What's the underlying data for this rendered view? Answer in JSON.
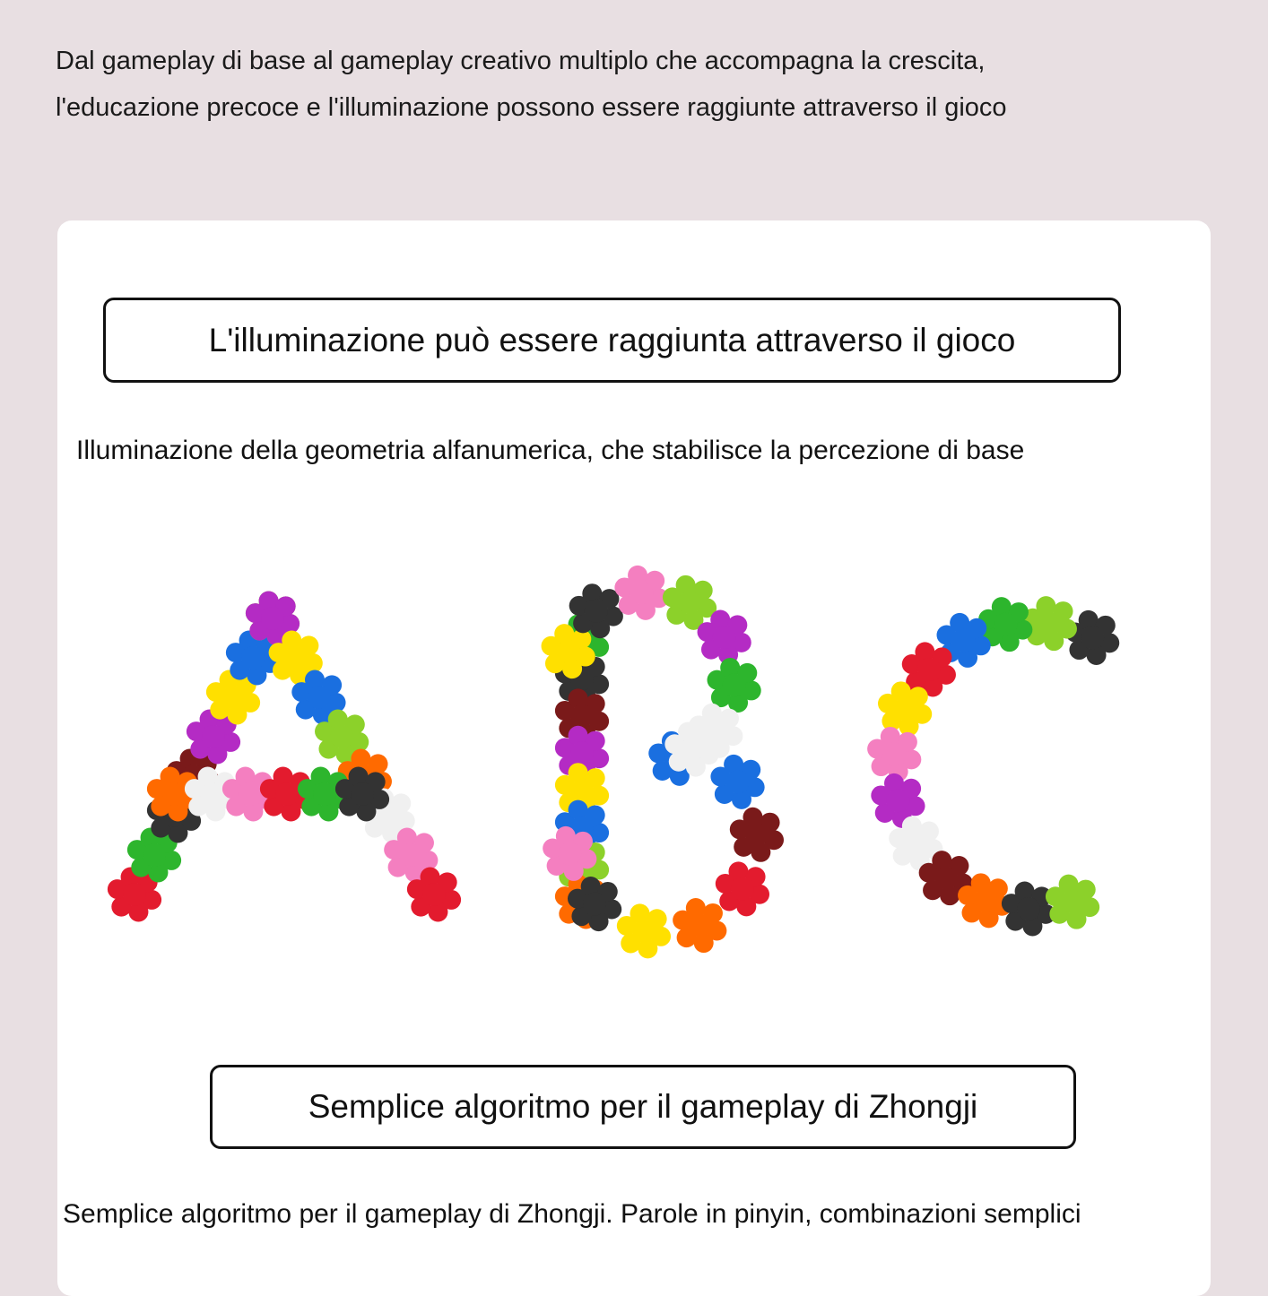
{
  "intro": {
    "line1": "Dal gameplay di base al gameplay creativo multiplo che accompagna la crescita,",
    "line2": "l'educazione precoce e l'illuminazione possono essere raggiunte attraverso il gioco"
  },
  "section1": {
    "heading": "L'illuminazione può essere raggiunta attraverso il gioco",
    "description": "Illuminazione della geometria alfanumerica, che stabilisce la percezione di base",
    "image_letters": [
      "A",
      "B",
      "C"
    ]
  },
  "section2": {
    "heading": "Semplice algoritmo per il gameplay di Zhongji",
    "description": "Semplice algoritmo per il gameplay di Zhongji. Parole in pinyin, combinazioni semplici"
  },
  "colors": {
    "background": "#e8dfe2",
    "card": "#ffffff",
    "block_palette": [
      "#e31b2e",
      "#b42bc4",
      "#ff6a00",
      "#2db52d",
      "#ffe000",
      "#f0f0f0",
      "#333333",
      "#1a6fe0",
      "#f47fc0",
      "#7a1a1a",
      "#8cd12a"
    ]
  }
}
